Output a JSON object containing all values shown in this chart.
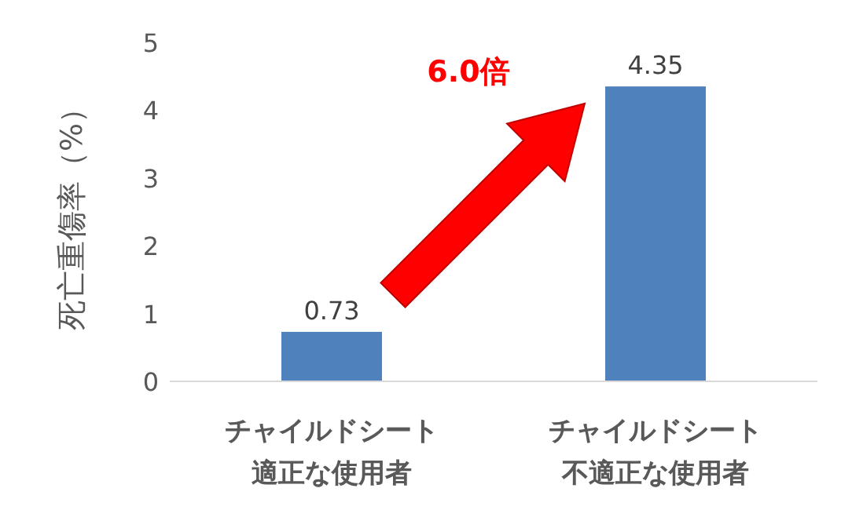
{
  "chart_data": {
    "type": "bar",
    "categories": [
      "チャイルドシート適正な使用者",
      "チャイルドシート不適正な使用者"
    ],
    "values": [
      0.73,
      4.35
    ],
    "color": "#4f81bd",
    "ylabel": "死亡重傷率（%）",
    "ylim": [
      0,
      5
    ],
    "yticks": [
      0,
      1,
      2,
      3,
      4,
      5
    ],
    "data_labels": true,
    "grid": false,
    "annotations": [
      "6.0倍"
    ]
  }
}
